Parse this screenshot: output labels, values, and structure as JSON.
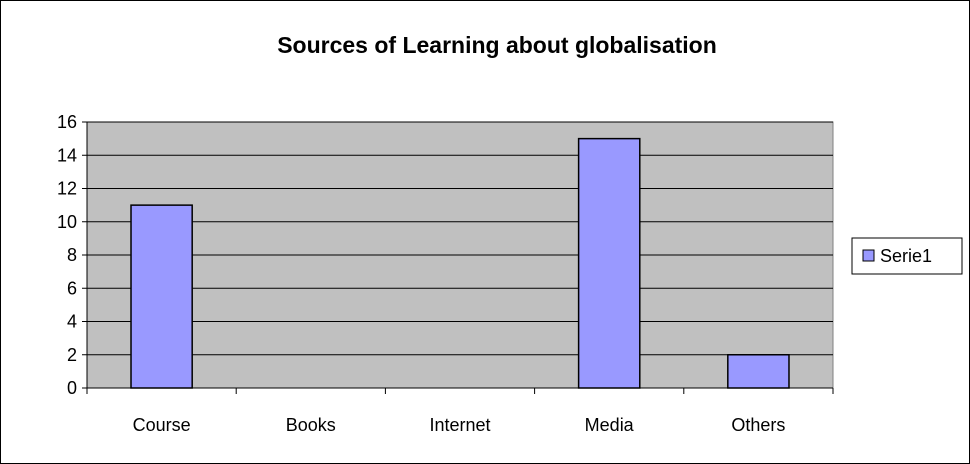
{
  "chart_data": {
    "type": "bar",
    "title": "Sources of Learning about globalisation",
    "xlabel": "",
    "ylabel": "",
    "categories": [
      "Course",
      "Books",
      "Internet",
      "Media",
      "Others"
    ],
    "series": [
      {
        "name": "Serie1",
        "values": [
          11,
          0,
          0,
          15,
          2
        ],
        "color": "#9999FF"
      }
    ],
    "ylim": [
      0,
      16
    ],
    "yticks": [
      "0",
      "2",
      "4",
      "6",
      "8",
      "10",
      "12",
      "14",
      "16"
    ],
    "grid": true,
    "plot_background": "#C0C0C0",
    "legend": "right"
  }
}
